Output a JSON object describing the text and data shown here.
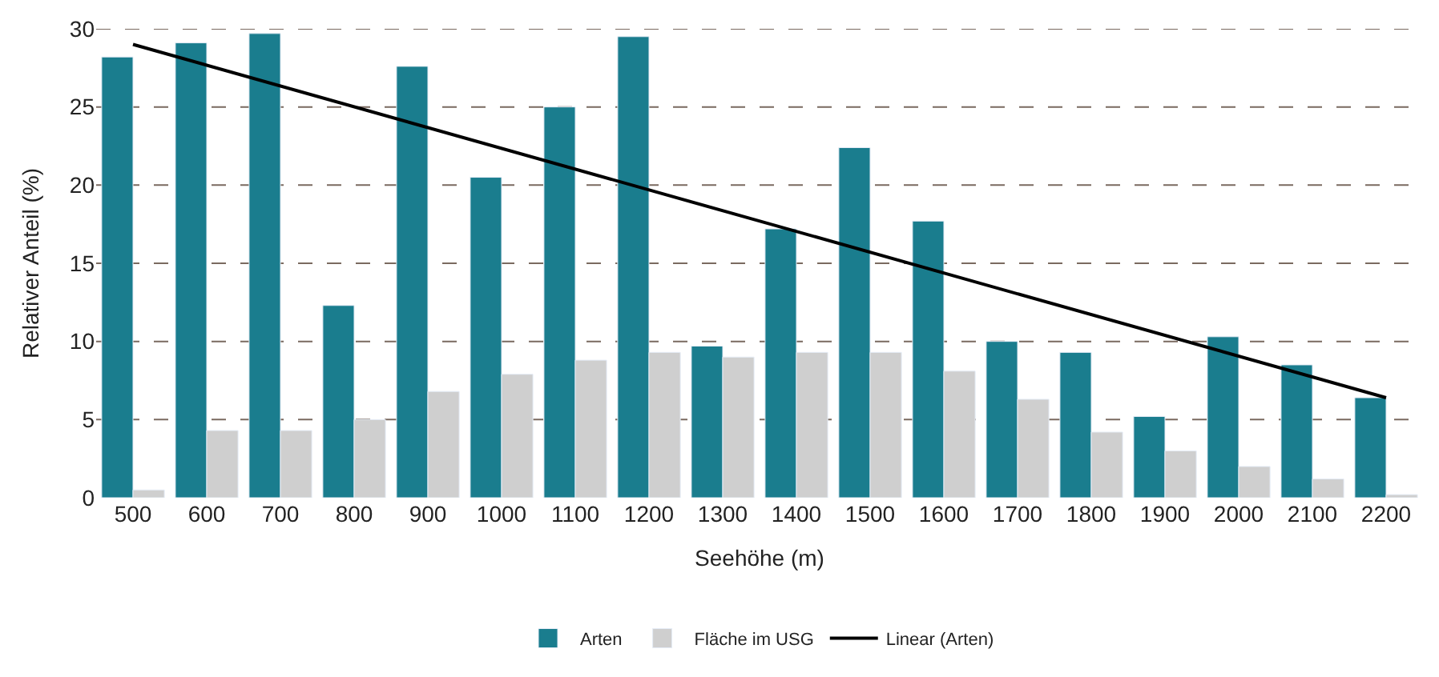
{
  "chart_data": {
    "type": "bar",
    "xlabel": "Seehöhe (m)",
    "ylabel": "Relativer Anteil (%)",
    "categories": [
      "500",
      "600",
      "700",
      "800",
      "900",
      "1000",
      "1100",
      "1200",
      "1300",
      "1400",
      "1500",
      "1600",
      "1700",
      "1800",
      "1900",
      "2000",
      "2100",
      "2200"
    ],
    "series": [
      {
        "name": "Arten",
        "color": "#1a7d8e",
        "values": [
          28.2,
          29.1,
          29.7,
          12.3,
          27.6,
          20.5,
          25.0,
          29.5,
          9.7,
          17.2,
          22.4,
          17.7,
          10.0,
          9.3,
          5.2,
          10.3,
          8.5,
          6.4
        ]
      },
      {
        "name": "Fläche im USG",
        "color": "#cfcfcf",
        "values": [
          0.5,
          4.3,
          4.3,
          5.0,
          6.8,
          7.9,
          8.8,
          9.3,
          9.0,
          9.3,
          9.3,
          8.1,
          6.3,
          4.2,
          3.0,
          2.0,
          1.2,
          0.2
        ]
      },
      {
        "name": "Linear (Arten)",
        "type": "line",
        "color": "#000000",
        "values": [
          29.0,
          null,
          null,
          null,
          null,
          null,
          null,
          null,
          null,
          null,
          null,
          null,
          null,
          null,
          null,
          null,
          null,
          6.4
        ]
      }
    ],
    "ylim": [
      0,
      30
    ],
    "yticks": [
      0,
      5,
      10,
      15,
      20,
      25,
      30
    ],
    "grid": "y",
    "legend": "bottom"
  }
}
